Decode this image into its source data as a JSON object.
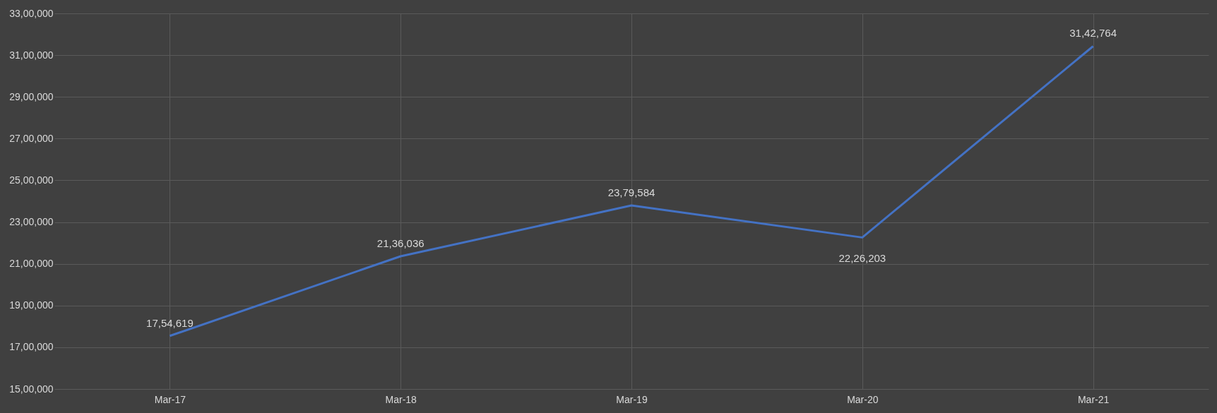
{
  "chart_data": {
    "type": "line",
    "categories": [
      "Mar-17",
      "Mar-18",
      "Mar-19",
      "Mar-20",
      "Mar-21"
    ],
    "values": [
      1754619,
      2136036,
      2379584,
      2226203,
      3142764
    ],
    "value_labels": [
      "17,54,619",
      "21,36,036",
      "23,79,584",
      "22,26,203",
      "31,42,764"
    ],
    "color": "#4472c4",
    "ylim": [
      1500000,
      3300000
    ],
    "yticks": [
      {
        "value": 1500000,
        "label": "15,00,000"
      },
      {
        "value": 1700000,
        "label": "17,00,000"
      },
      {
        "value": 1900000,
        "label": "19,00,000"
      },
      {
        "value": 2100000,
        "label": "21,00,000"
      },
      {
        "value": 2300000,
        "label": "23,00,000"
      },
      {
        "value": 2500000,
        "label": "25,00,000"
      },
      {
        "value": 2700000,
        "label": "27,00,000"
      },
      {
        "value": 2900000,
        "label": "29,00,000"
      },
      {
        "value": 3100000,
        "label": "31,00,000"
      },
      {
        "value": 3300000,
        "label": "33,00,000"
      }
    ],
    "grid": true,
    "marker": "none",
    "line_style": "solid"
  }
}
